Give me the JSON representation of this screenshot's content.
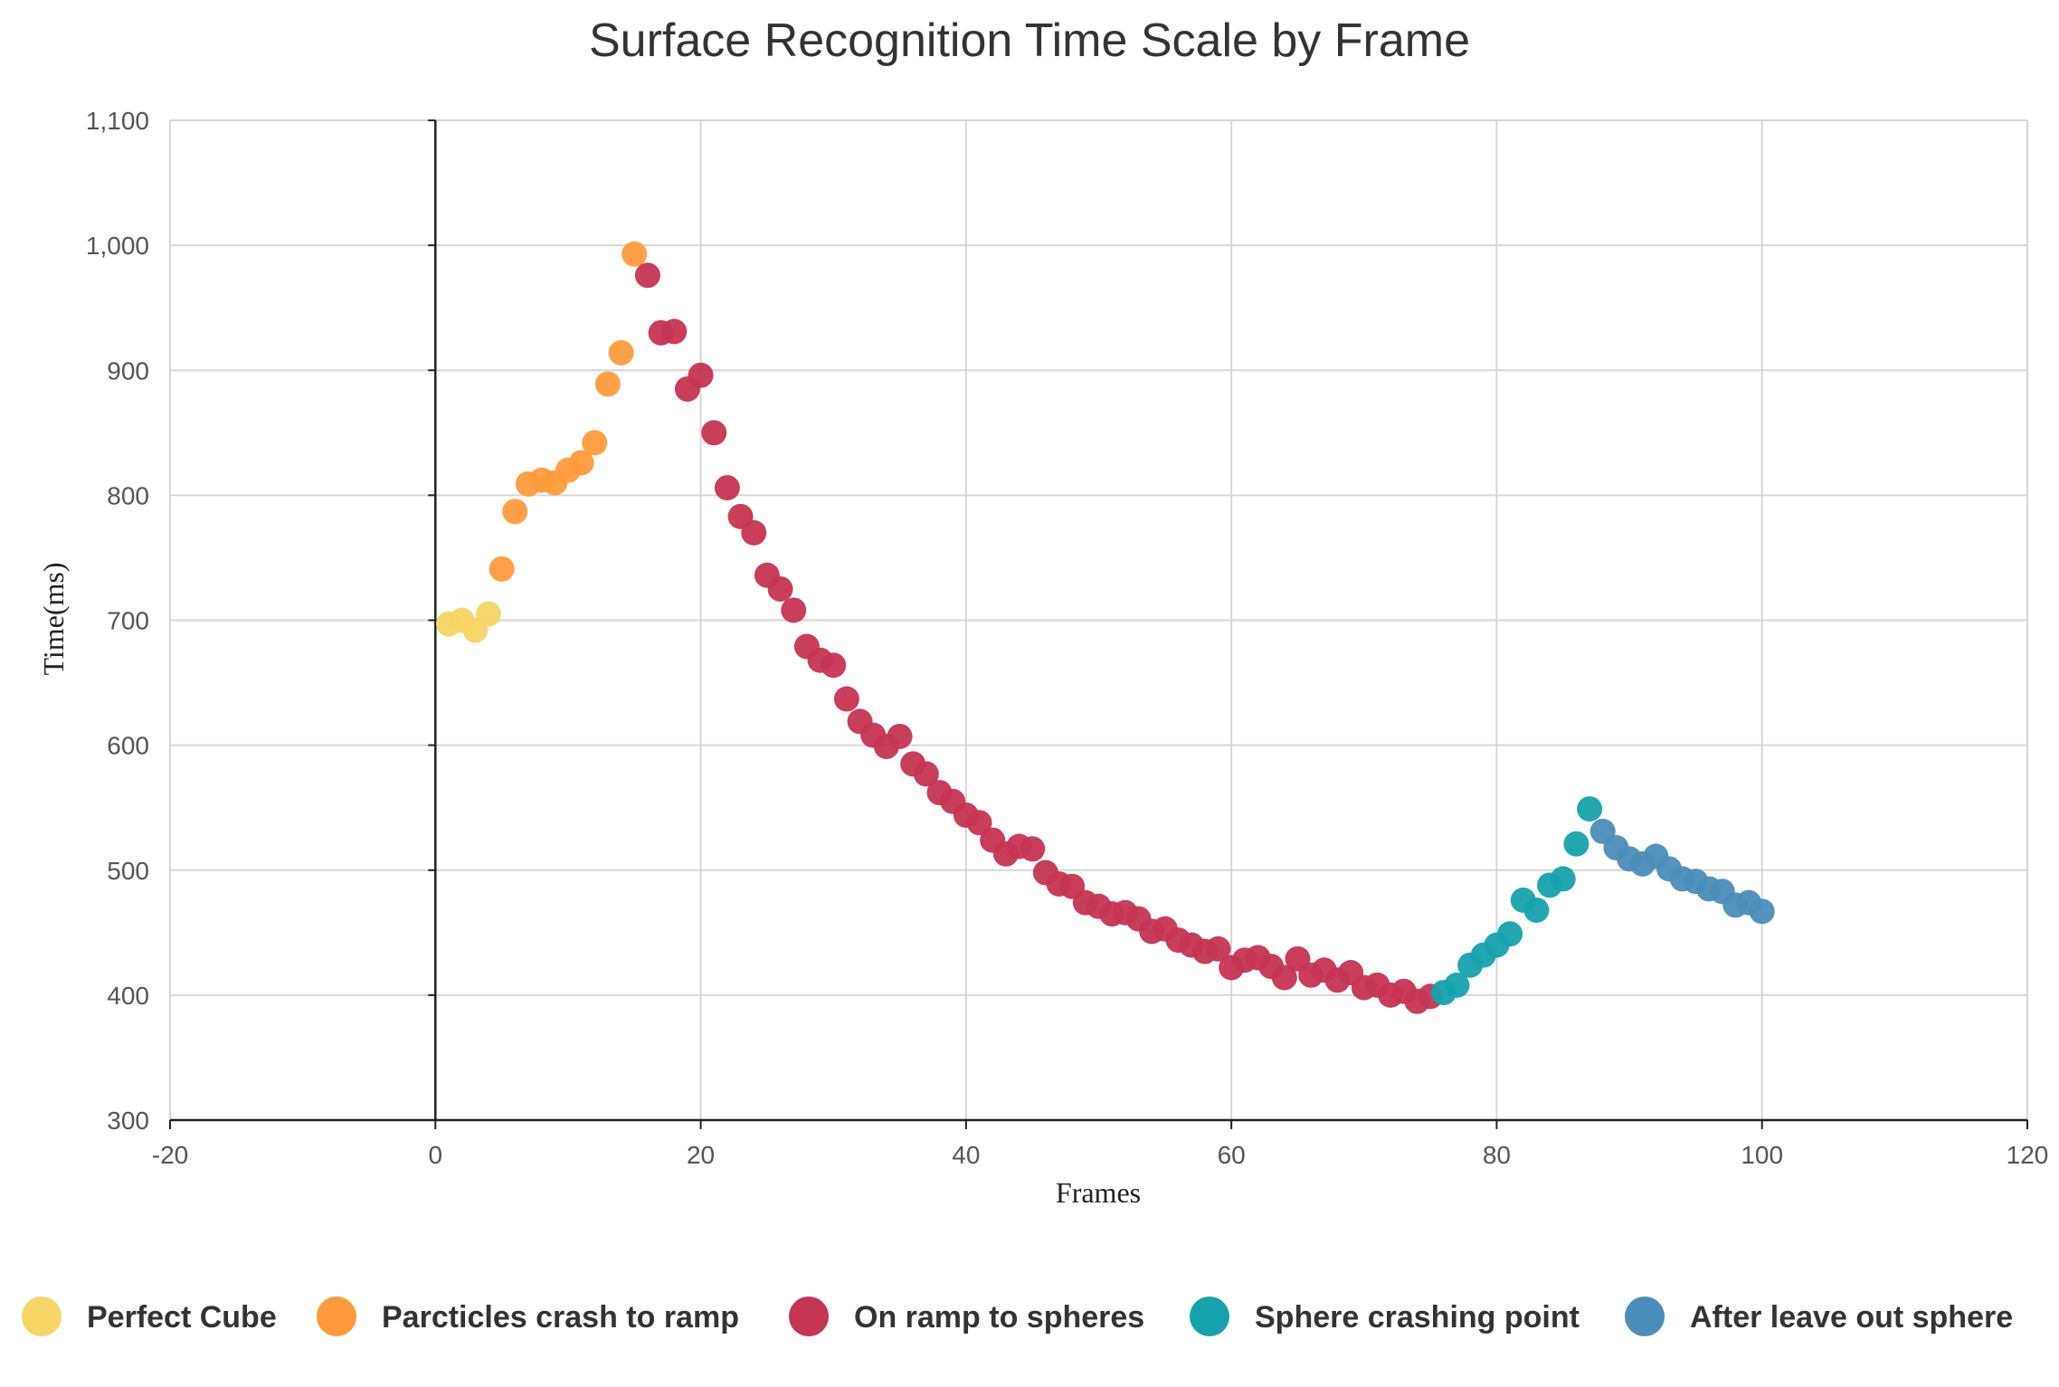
{
  "chart_data": {
    "type": "scatter",
    "title": "Surface Recognition Time Scale by Frame",
    "xlabel": "Frames",
    "ylabel": "Time(ms)",
    "xlim": [
      -20,
      120
    ],
    "ylim": [
      300,
      1100
    ],
    "xticks": [
      -20,
      0,
      20,
      40,
      60,
      80,
      100,
      120
    ],
    "yticks": [
      300,
      400,
      500,
      600,
      700,
      800,
      900,
      1000,
      1100
    ],
    "xtick_labels": [
      "-20",
      "0",
      "20",
      "40",
      "60",
      "80",
      "100",
      "120"
    ],
    "ytick_labels": [
      "300",
      "400",
      "500",
      "600",
      "700",
      "800",
      "900",
      "1,000",
      "1,100"
    ],
    "grid": true,
    "legend_position": "bottom",
    "series": [
      {
        "name": "Perfect Cube",
        "color": "#f5d565",
        "points": [
          [
            1,
            697
          ],
          [
            2,
            700
          ],
          [
            3,
            692
          ],
          [
            4,
            705
          ]
        ]
      },
      {
        "name": "Parcticles crash to ramp",
        "color": "#ff9a3c",
        "points": [
          [
            5,
            741
          ],
          [
            6,
            787
          ],
          [
            7,
            809
          ],
          [
            8,
            812
          ],
          [
            9,
            810
          ],
          [
            10,
            820
          ],
          [
            11,
            826
          ],
          [
            12,
            842
          ],
          [
            13,
            889
          ],
          [
            14,
            914
          ],
          [
            15,
            993
          ]
        ]
      },
      {
        "name": "On ramp to spheres",
        "color": "#c53452",
        "points": [
          [
            16,
            976
          ],
          [
            17,
            930
          ],
          [
            18,
            931
          ],
          [
            19,
            885
          ],
          [
            20,
            896
          ],
          [
            21,
            850
          ],
          [
            22,
            806
          ],
          [
            23,
            783
          ],
          [
            24,
            770
          ],
          [
            25,
            736
          ],
          [
            26,
            725
          ],
          [
            27,
            708
          ],
          [
            28,
            679
          ],
          [
            29,
            668
          ],
          [
            30,
            664
          ],
          [
            31,
            637
          ],
          [
            32,
            619
          ],
          [
            33,
            608
          ],
          [
            34,
            599
          ],
          [
            35,
            607
          ],
          [
            36,
            585
          ],
          [
            37,
            577
          ],
          [
            38,
            562
          ],
          [
            39,
            555
          ],
          [
            40,
            544
          ],
          [
            41,
            538
          ],
          [
            42,
            524
          ],
          [
            43,
            513
          ],
          [
            44,
            519
          ],
          [
            45,
            517
          ],
          [
            46,
            498
          ],
          [
            47,
            489
          ],
          [
            48,
            487
          ],
          [
            49,
            474
          ],
          [
            50,
            471
          ],
          [
            51,
            465
          ],
          [
            52,
            466
          ],
          [
            53,
            461
          ],
          [
            54,
            451
          ],
          [
            55,
            453
          ],
          [
            56,
            444
          ],
          [
            57,
            440
          ],
          [
            58,
            435
          ],
          [
            59,
            437
          ],
          [
            60,
            422
          ],
          [
            61,
            428
          ],
          [
            62,
            430
          ],
          [
            63,
            423
          ],
          [
            64,
            414
          ],
          [
            65,
            429
          ],
          [
            66,
            416
          ],
          [
            67,
            420
          ],
          [
            68,
            412
          ],
          [
            69,
            418
          ],
          [
            70,
            406
          ],
          [
            71,
            408
          ],
          [
            72,
            400
          ],
          [
            73,
            403
          ],
          [
            74,
            395
          ],
          [
            75,
            399
          ]
        ]
      },
      {
        "name": "Sphere crashing point",
        "color": "#16a2ad",
        "points": [
          [
            76,
            402
          ],
          [
            77,
            408
          ],
          [
            78,
            424
          ],
          [
            79,
            432
          ],
          [
            80,
            440
          ],
          [
            81,
            449
          ],
          [
            82,
            476
          ],
          [
            83,
            468
          ],
          [
            84,
            488
          ],
          [
            85,
            493
          ],
          [
            86,
            521
          ],
          [
            87,
            549
          ]
        ]
      },
      {
        "name": "After leave out sphere",
        "color": "#4a8db8",
        "points": [
          [
            88,
            531
          ],
          [
            89,
            518
          ],
          [
            90,
            509
          ],
          [
            91,
            505
          ],
          [
            92,
            511
          ],
          [
            93,
            501
          ],
          [
            94,
            493
          ],
          [
            95,
            491
          ],
          [
            96,
            485
          ],
          [
            97,
            483
          ],
          [
            98,
            472
          ],
          [
            99,
            474
          ],
          [
            100,
            467
          ]
        ]
      }
    ]
  }
}
